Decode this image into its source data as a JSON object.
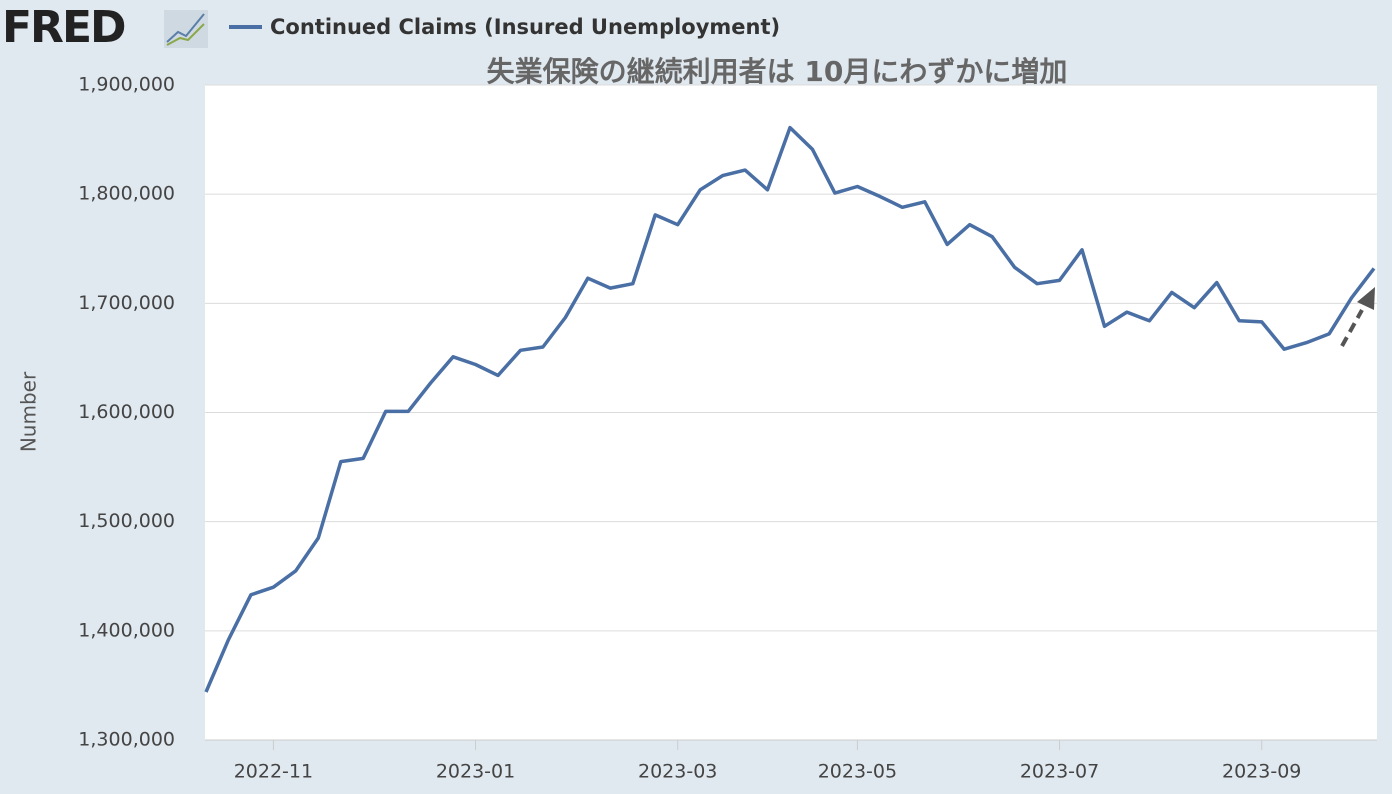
{
  "logo": "FRED",
  "chart_data": {
    "type": "line",
    "title": "失業保険の継続利用者は 10月にわずかに増加",
    "y_label": "Number",
    "categories": [
      null,
      null,
      null,
      "2022-11",
      null,
      null,
      null,
      null,
      null,
      null,
      null,
      null,
      "2023-01",
      null,
      null,
      null,
      null,
      null,
      null,
      null,
      null,
      "2023-03",
      null,
      null,
      null,
      null,
      null,
      null,
      null,
      "2023-05",
      null,
      null,
      null,
      null,
      null,
      null,
      null,
      null,
      "2023-07",
      null,
      null,
      null,
      null,
      null,
      null,
      null,
      null,
      "2023-09",
      null,
      null,
      null,
      null,
      null
    ],
    "series": [
      {
        "name": "Continued Claims (Insured Unemployment)",
        "color": "#4a6fa5",
        "values": [
          1344000,
          1392000,
          1433000,
          1440000,
          1455000,
          1485000,
          1555000,
          1558000,
          1601000,
          1601000,
          1627000,
          1651000,
          1644000,
          1634000,
          1657000,
          1660000,
          1687000,
          1723000,
          1714000,
          1718000,
          1781000,
          1772000,
          1804000,
          1817000,
          1822000,
          1804000,
          1861000,
          1841000,
          1801000,
          1807000,
          1798000,
          1788000,
          1793000,
          1754000,
          1772000,
          1761000,
          1733000,
          1718000,
          1721000,
          1749000,
          1679000,
          1692000,
          1684000,
          1710000,
          1696000,
          1719000,
          1684000,
          1683000,
          1658000,
          1664000,
          1672000,
          1705000,
          1732000
        ]
      }
    ],
    "ylim": [
      1300000,
      1900000
    ],
    "yticks": [
      {
        "value": 1300000,
        "label": "1,300,000"
      },
      {
        "value": 1400000,
        "label": "1,400,000"
      },
      {
        "value": 1500000,
        "label": "1,500,000"
      },
      {
        "value": 1600000,
        "label": "1,600,000"
      },
      {
        "value": 1700000,
        "label": "1,700,000"
      },
      {
        "value": 1800000,
        "label": "1,800,000"
      },
      {
        "value": 1900000,
        "label": "1,900,000"
      }
    ],
    "grid": true
  }
}
